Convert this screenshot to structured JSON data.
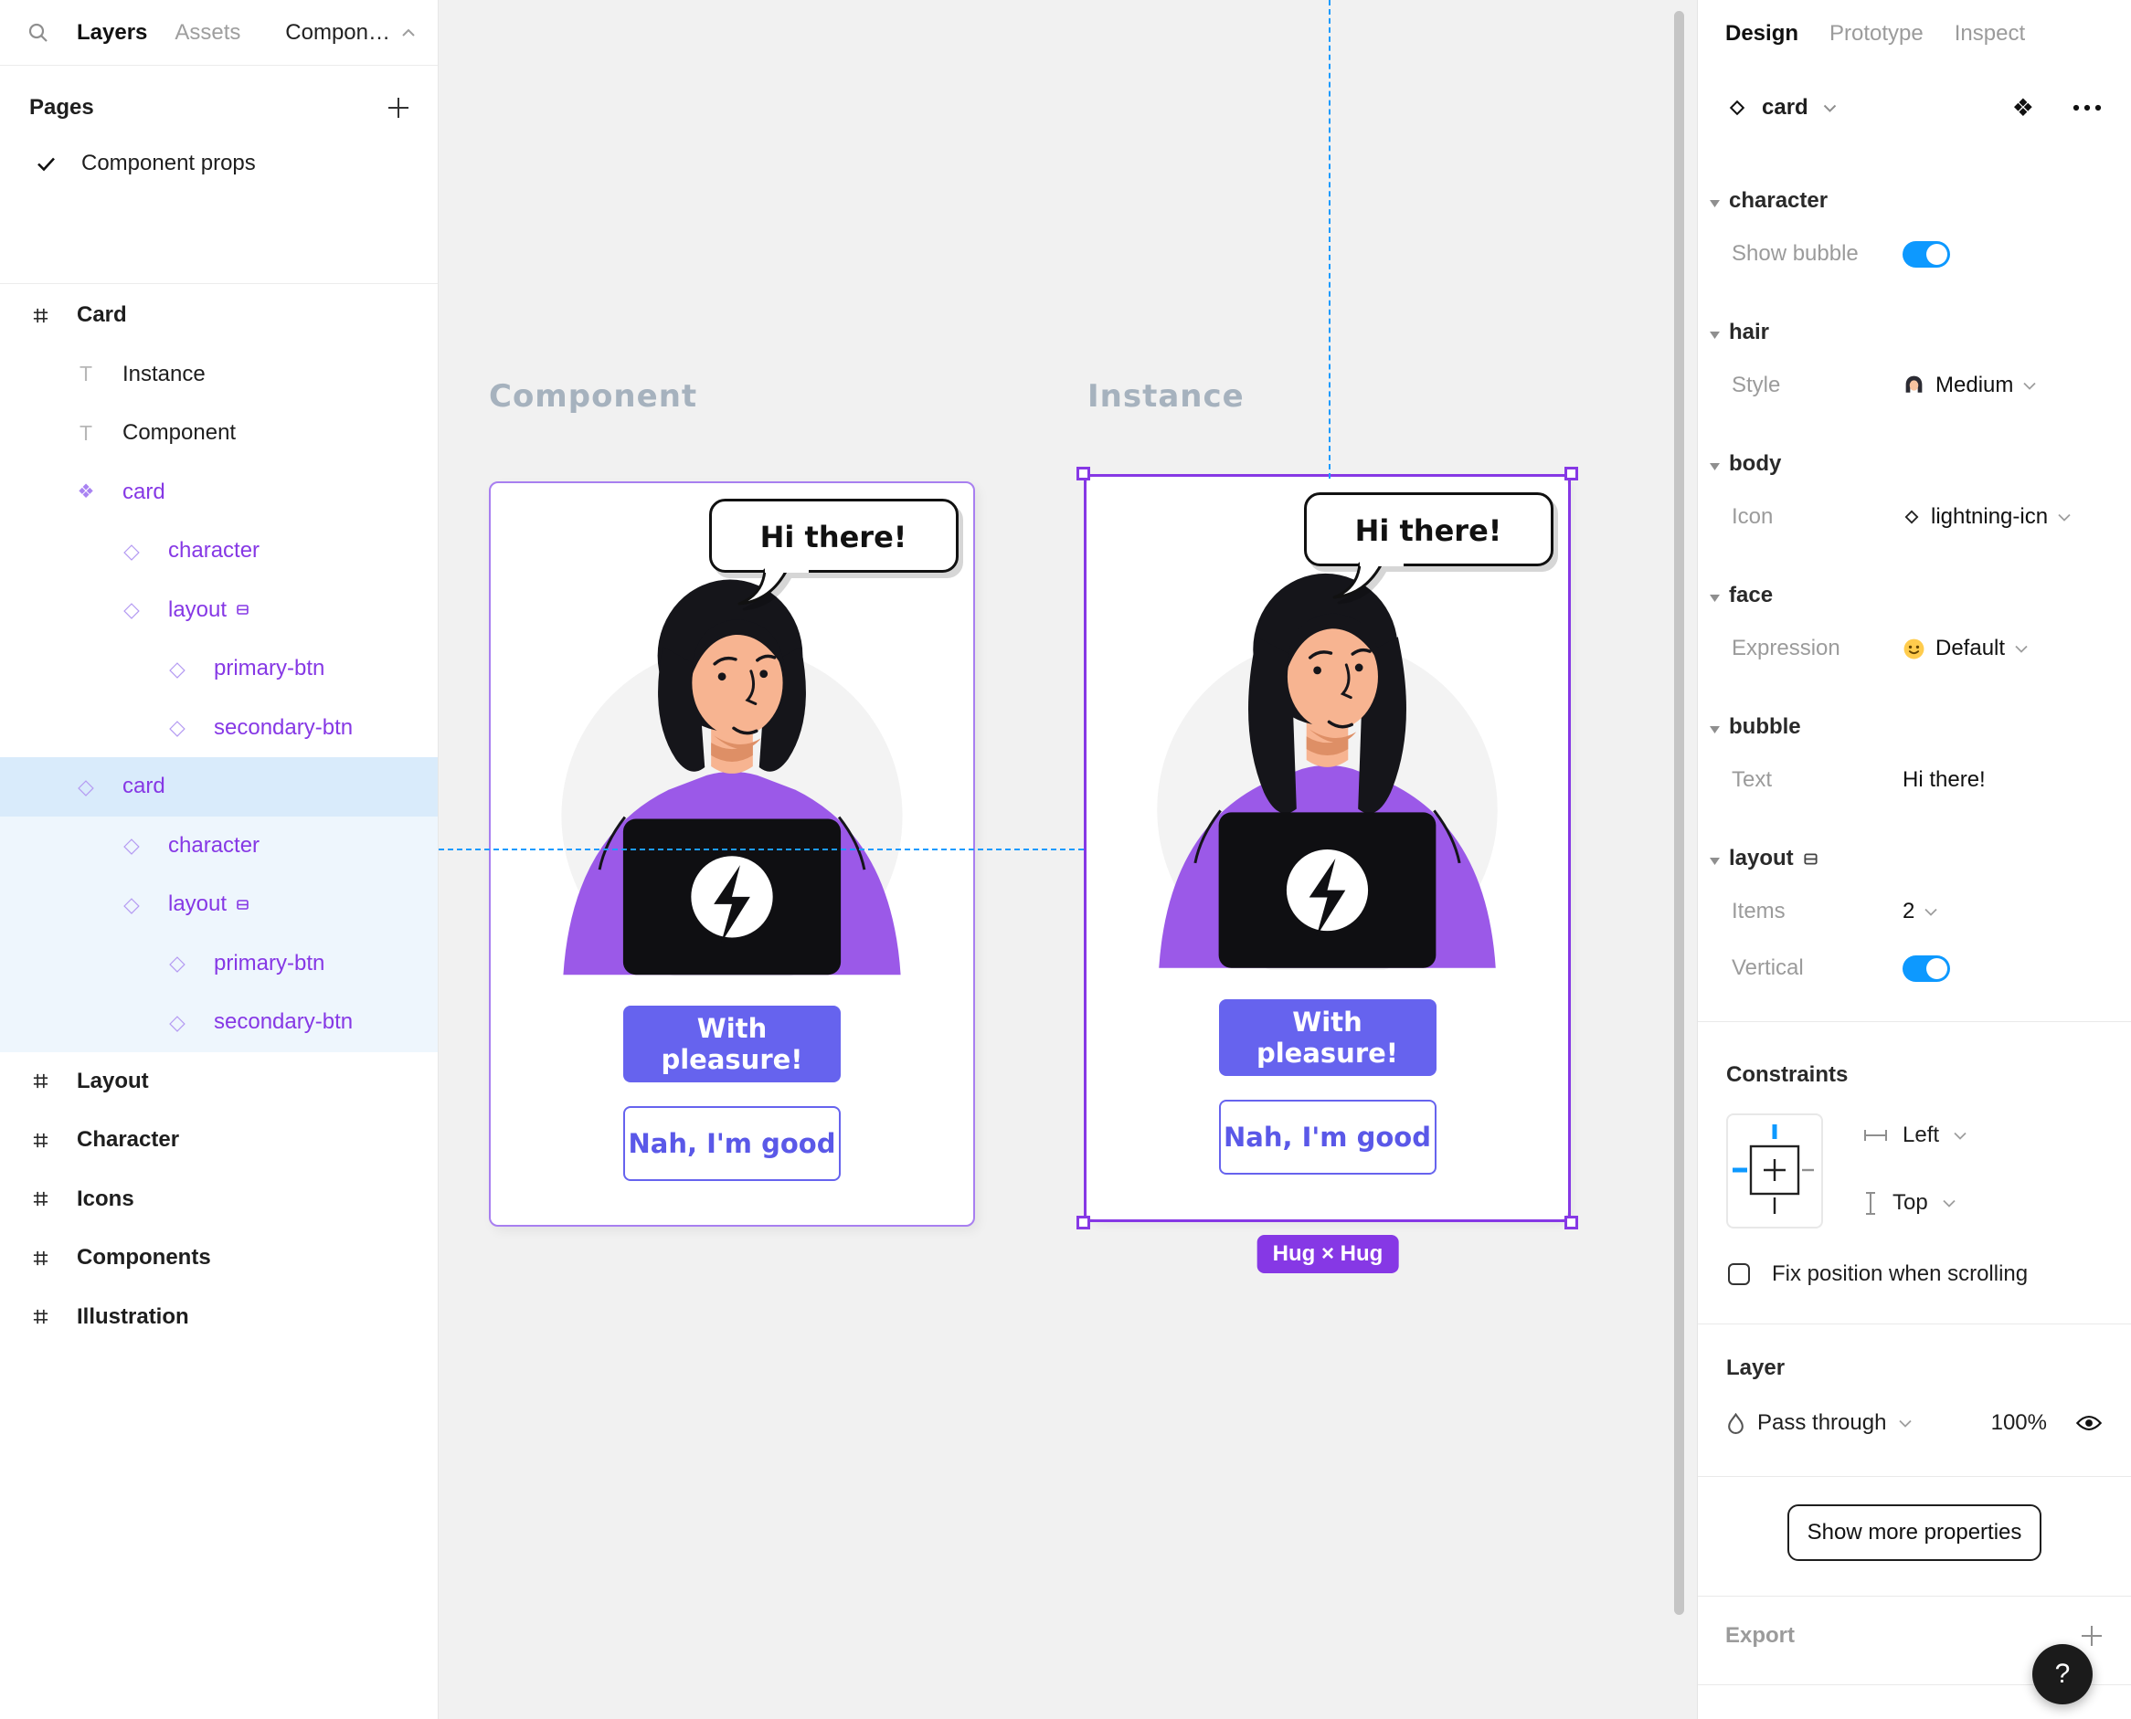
{
  "colors": {
    "accent_purple": "#8638E5",
    "tree_purple": "#8638E5",
    "toggle_blue": "#0D99FF",
    "guide_blue": "#1C9BFF",
    "primary_button_bg": "#6663EE",
    "character_shirt": "#9B59E8",
    "selected_row_bg": "#D9EBFB",
    "related_row_bg": "#EEF6FD",
    "canvas_bg": "#F1F1F1"
  },
  "sidebar": {
    "tabs": {
      "layers": "Layers",
      "assets": "Assets"
    },
    "page_selector": "Compon…",
    "pages_title": "Pages",
    "current_page": "Component props",
    "tree": [
      {
        "label": "Card",
        "type": "frame",
        "level": 0
      },
      {
        "label": "Instance",
        "type": "text",
        "level": 1
      },
      {
        "label": "Component",
        "type": "text",
        "level": 1
      },
      {
        "label": "card",
        "type": "component",
        "level": 1
      },
      {
        "label": "character",
        "type": "instance",
        "level": 2
      },
      {
        "label": "layout",
        "type": "instance",
        "level": 2,
        "autolayout": true
      },
      {
        "label": "primary-btn",
        "type": "instance",
        "level": 3
      },
      {
        "label": "secondary-btn",
        "type": "instance",
        "level": 3
      },
      {
        "label": "card",
        "type": "instance",
        "level": 1,
        "selected": true
      },
      {
        "label": "character",
        "type": "instance",
        "level": 2,
        "related": true
      },
      {
        "label": "layout",
        "type": "instance",
        "level": 2,
        "autolayout": true,
        "related": true
      },
      {
        "label": "primary-btn",
        "type": "instance",
        "level": 3,
        "related": true
      },
      {
        "label": "secondary-btn",
        "type": "instance",
        "level": 3,
        "related": true
      },
      {
        "label": "Layout",
        "type": "frame",
        "level": 0
      },
      {
        "label": "Character",
        "type": "frame",
        "level": 0
      },
      {
        "label": "Icons",
        "type": "frame",
        "level": 0
      },
      {
        "label": "Components",
        "type": "frame",
        "level": 0
      },
      {
        "label": "Illustration",
        "type": "frame",
        "level": 0
      }
    ]
  },
  "canvas": {
    "component_label": "Component",
    "instance_label": "Instance",
    "card": {
      "bubble_text": "Hi there!",
      "primary_label": "With pleasure!",
      "secondary_label": "Nah, I'm good"
    },
    "selection_badge": "Hug × Hug"
  },
  "inspector": {
    "tabs": {
      "design": "Design",
      "prototype": "Prototype",
      "inspect": "Inspect"
    },
    "selection_name": "card",
    "character": {
      "title": "character",
      "bubble_label": "Show bubble",
      "bubble_on": true
    },
    "hair": {
      "title": "hair",
      "label": "Style",
      "value": "Medium"
    },
    "body": {
      "title": "body",
      "label": "Icon",
      "value": "lightning-icn"
    },
    "face": {
      "title": "face",
      "label": "Expression",
      "value": "Default"
    },
    "bubble": {
      "title": "bubble",
      "label": "Text",
      "value": "Hi there!"
    },
    "layout": {
      "title": "layout",
      "items_label": "Items",
      "items_value": "2",
      "vertical_label": "Vertical",
      "vertical_on": true
    },
    "constraints": {
      "title": "Constraints",
      "horizontal": "Left",
      "vertical": "Top",
      "fix_label": "Fix position when scrolling",
      "fix_checked": false
    },
    "layer": {
      "title": "Layer",
      "blend_mode": "Pass through",
      "opacity": "100%"
    },
    "show_more_label": "Show more properties",
    "export_title": "Export",
    "help_label": "?"
  }
}
